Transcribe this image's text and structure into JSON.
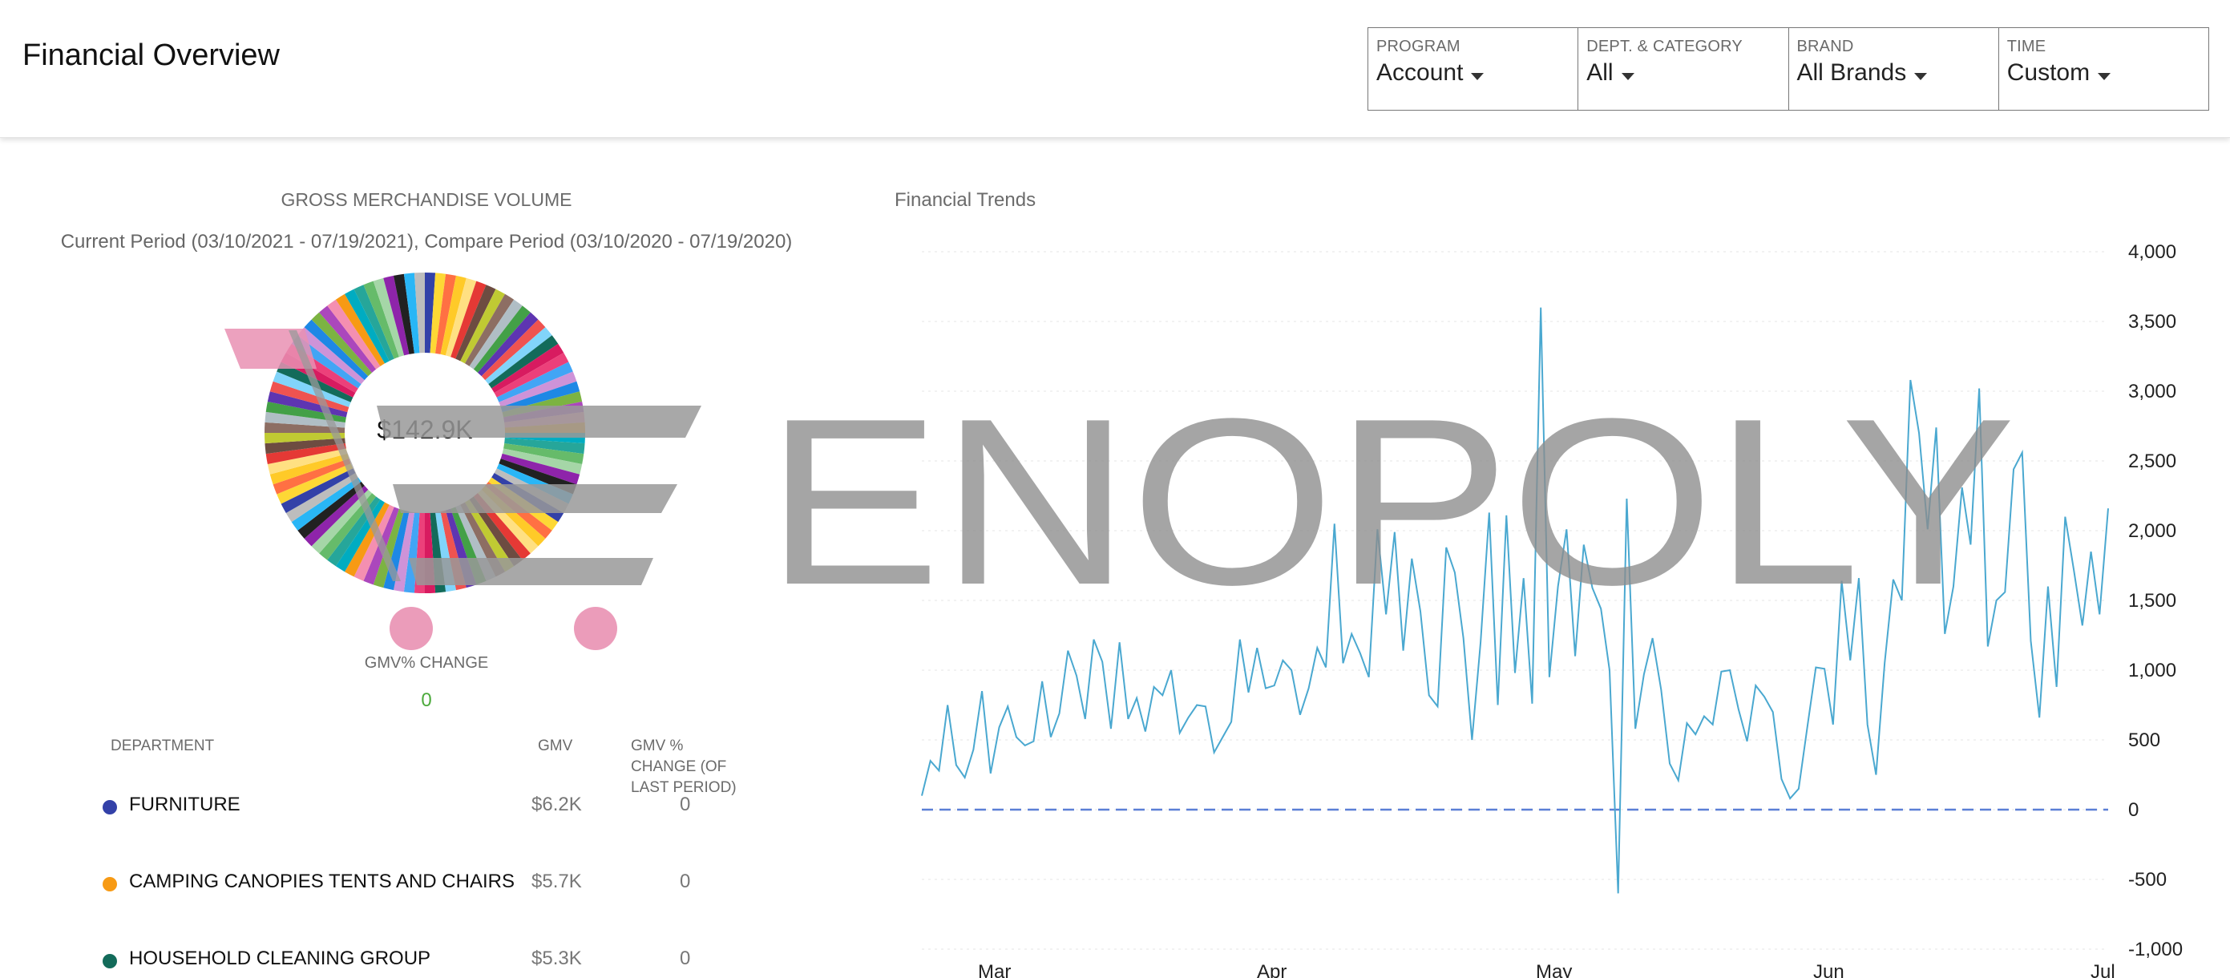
{
  "header": {
    "title": "Financial Overview",
    "filters": [
      {
        "label": "PROGRAM",
        "value": "Account"
      },
      {
        "label": "DEPT. & CATEGORY",
        "value": "All"
      },
      {
        "label": "BRAND",
        "value": "All Brands"
      },
      {
        "label": "TIME",
        "value": "Custom"
      }
    ]
  },
  "gmv": {
    "title": "GROSS MERCHANDISE VOLUME",
    "period": "Current Period (03/10/2021 - 07/19/2021), Compare Period (03/10/2020 - 07/19/2020)",
    "total": "$142.9K",
    "change_label": "GMV% CHANGE",
    "change_value": "0"
  },
  "departments": {
    "headers": {
      "department": "DEPARTMENT",
      "gmv": "GMV",
      "change": "GMV % CHANGE (OF LAST PERIOD)"
    },
    "rows": [
      {
        "name": "FURNITURE",
        "gmv": "$6.2K",
        "change": "0",
        "color": "#3341a8"
      },
      {
        "name": "CAMPING CANOPIES TENTS AND CHAIRS",
        "gmv": "$5.7K",
        "change": "0",
        "color": "#f79a14"
      },
      {
        "name": "HOUSEHOLD CLEANING GROUP",
        "gmv": "$5.3K",
        "change": "0",
        "color": "#136b5a"
      }
    ]
  },
  "trends": {
    "title": "Financial Trends"
  },
  "watermark": "ENOPOLY",
  "chart_data": [
    {
      "type": "pie",
      "title": "",
      "center_label": "$142.9K",
      "slice_colors": [
        "#3341a8",
        "#f79a14",
        "#136b5a",
        "#e53935",
        "#8e24aa",
        "#1e88e5",
        "#43a047",
        "#fdd835",
        "#00acc1",
        "#d81b60",
        "#6d4c41",
        "#212121",
        "#7cb342",
        "#5e35b1",
        "#ff7043",
        "#26a69a",
        "#ec407a",
        "#c0ca33",
        "#29b6f6",
        "#ab47bc",
        "#ef5350",
        "#ffca28",
        "#66bb6a",
        "#42a5f5",
        "#8d6e63",
        "#bdbdbd",
        "#f48fb1",
        "#81d4fa",
        "#ffe082",
        "#a5d6a7",
        "#ce93d8",
        "#b0bec5"
      ]
    },
    {
      "type": "line",
      "title": "",
      "xlabel": "",
      "ylabel": "",
      "ylim": [
        -1000,
        4000
      ],
      "y_ticks": [
        "4,000",
        "3,500",
        "3,000",
        "2,500",
        "2,000",
        "1,500",
        "1,000",
        "500",
        "0",
        "-500",
        "-1,000"
      ],
      "x_ticks": [
        "Mar",
        "Apr",
        "May",
        "Jun",
        "Jul"
      ],
      "grid": true,
      "series": [
        {
          "color": "#4aa8d0",
          "values": [
            100,
            350,
            280,
            750,
            320,
            230,
            430,
            850,
            260,
            590,
            740,
            520,
            460,
            490,
            920,
            520,
            690,
            1140,
            960,
            650,
            1220,
            1060,
            580,
            1200,
            650,
            800,
            560,
            880,
            820,
            1000,
            550,
            660,
            750,
            740,
            410,
            520,
            630,
            1220,
            840,
            1160,
            870,
            890,
            1070,
            1000,
            680,
            870,
            1160,
            1020,
            2050,
            1050,
            1260,
            1120,
            950,
            2010,
            1400,
            1990,
            1140,
            1800,
            1420,
            820,
            740,
            1880,
            1700,
            1230,
            500,
            1200,
            2130,
            750,
            2110,
            980,
            1660,
            760,
            3600,
            950,
            1600,
            2010,
            1100,
            1900,
            1590,
            1440,
            1000,
            -600,
            2230,
            580,
            970,
            1230,
            860,
            330,
            210,
            620,
            540,
            670,
            610,
            990,
            1000,
            720,
            490,
            890,
            810,
            700,
            220,
            80,
            150,
            590,
            1020,
            1010,
            610,
            1640,
            1070,
            1660,
            610,
            250,
            1050,
            1650,
            1500,
            3080,
            2700,
            2010,
            2740,
            1260,
            1600,
            2310,
            1900,
            3020,
            1170,
            1500,
            1560,
            2440,
            2560,
            1210,
            660,
            1600,
            880,
            2100,
            1720,
            1320,
            1850,
            1400,
            2160
          ]
        },
        {
          "color": "#5b7fd6",
          "dashed": true,
          "values": [
            0
          ]
        }
      ]
    }
  ]
}
